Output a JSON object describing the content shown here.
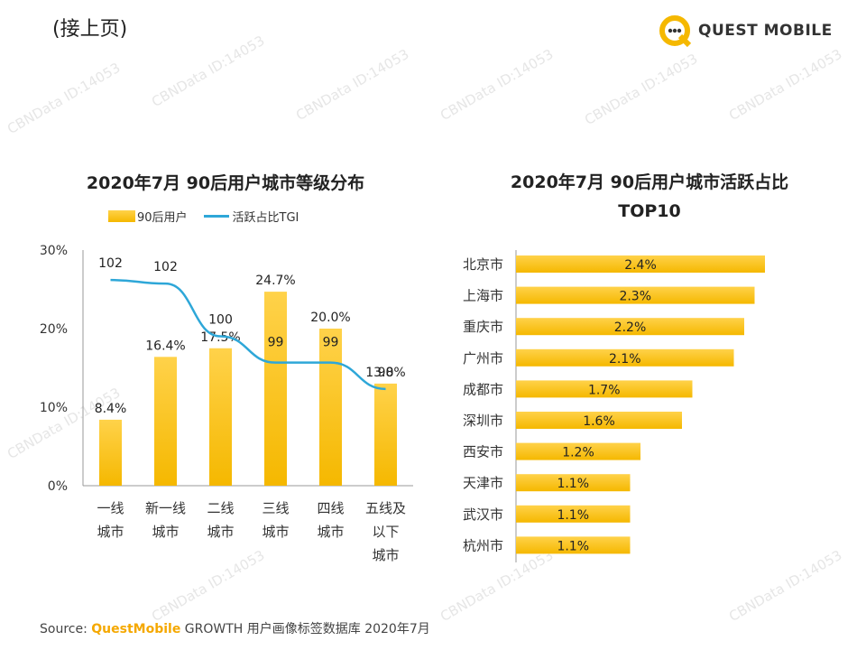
{
  "page_note": "(接上页)",
  "logo": {
    "text": "QUEST MOBILE"
  },
  "source": {
    "prefix": "Source:",
    "brand": "QuestMobile",
    "rest": "GROWTH 用户画像标签数据库 2020年7月"
  },
  "watermark": "CBNData ID:14053",
  "colors": {
    "bar_top": "#ffd24a",
    "bar_bottom": "#f5b800",
    "line": "#2ea7d8"
  },
  "chart_data": [
    {
      "type": "bar",
      "title": "2020年7月 90后用户城市等级分布",
      "categories": [
        [
          "一线",
          "城市"
        ],
        [
          "新一线",
          "城市"
        ],
        [
          "二线",
          "城市"
        ],
        [
          "三线",
          "城市"
        ],
        [
          "四线",
          "城市"
        ],
        [
          "五线及",
          "以下",
          "城市"
        ]
      ],
      "yticks": [
        "30%",
        "20%",
        "10%",
        "0%"
      ],
      "ylim": [
        0,
        30
      ],
      "legend": [
        "90后用户",
        "活跃占比TGI"
      ],
      "legend_position": "top",
      "series": [
        {
          "name": "90后用户",
          "values": [
            8.4,
            16.4,
            17.5,
            24.7,
            20.0,
            13.0
          ],
          "labels": [
            "8.4%",
            "16.4%",
            "17.5%",
            "24.7%",
            "20.0%",
            "13.0%"
          ]
        },
        {
          "name": "活跃占比TGI",
          "type": "line",
          "values": [
            102,
            102,
            100,
            99,
            99,
            98
          ],
          "labels": [
            "102",
            "102",
            "100",
            "99",
            "99",
            "98"
          ]
        }
      ]
    },
    {
      "type": "bar",
      "orientation": "horizontal",
      "title": "2020年7月 90后用户城市活跃占比",
      "subtitle": "TOP10",
      "categories": [
        "北京市",
        "上海市",
        "重庆市",
        "广州市",
        "成都市",
        "深圳市",
        "西安市",
        "天津市",
        "武汉市",
        "杭州市"
      ],
      "values": [
        2.4,
        2.3,
        2.2,
        2.1,
        1.7,
        1.6,
        1.2,
        1.1,
        1.1,
        1.1
      ],
      "labels": [
        "2.4%",
        "2.3%",
        "2.2%",
        "2.1%",
        "1.7%",
        "1.6%",
        "1.2%",
        "1.1%",
        "1.1%",
        "1.1%"
      ]
    }
  ]
}
